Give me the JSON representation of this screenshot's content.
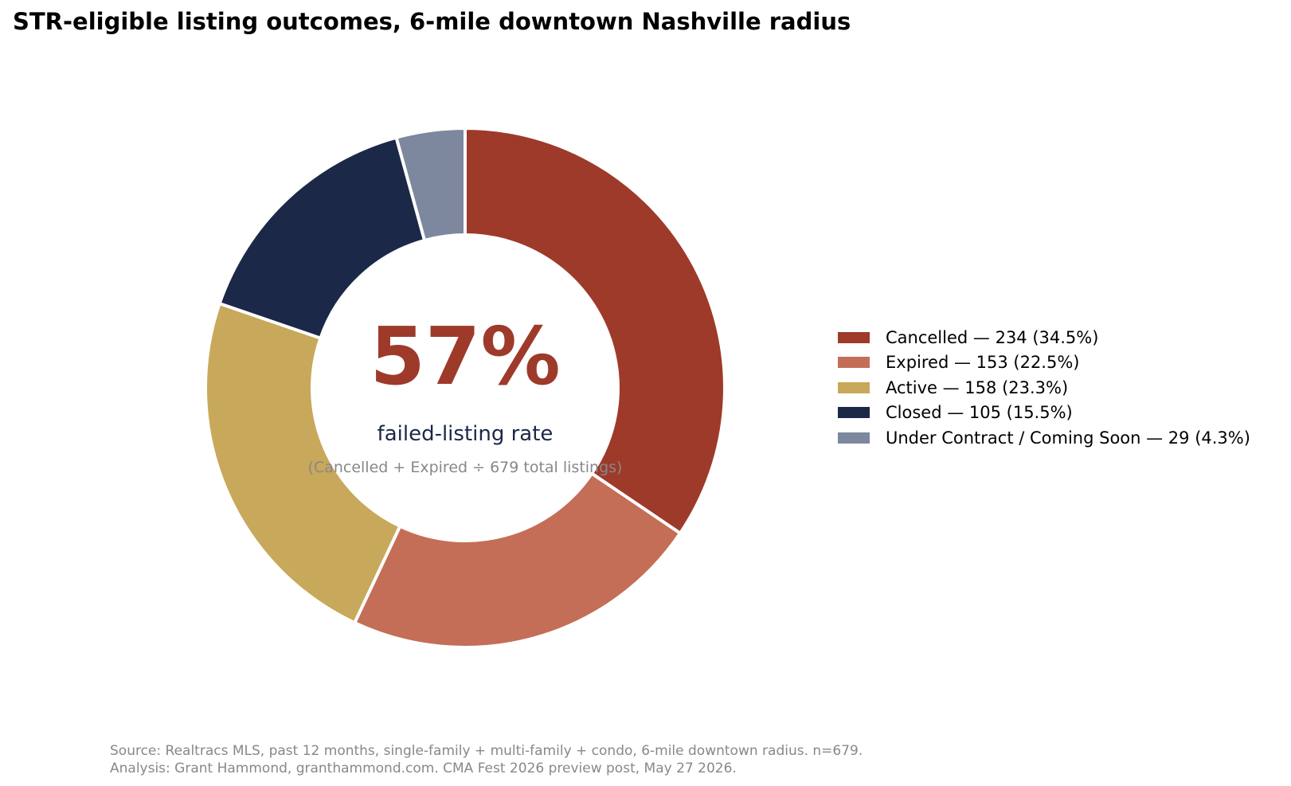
{
  "chart_data": {
    "type": "pie",
    "title": "STR-eligible listing outcomes, 6-mile downtown Nashville radius",
    "total": 679,
    "slices": [
      {
        "name": "Cancelled",
        "value": 234,
        "percent": 34.5,
        "color": "#9E3A2A",
        "label": "Cancelled — 234 (34.5%)"
      },
      {
        "name": "Expired",
        "value": 153,
        "percent": 22.5,
        "color": "#C46E57",
        "label": "Expired — 153 (22.5%)"
      },
      {
        "name": "Active",
        "value": 158,
        "percent": 23.3,
        "color": "#C8A85A",
        "label": "Active — 158 (23.3%)"
      },
      {
        "name": "Closed",
        "value": 105,
        "percent": 15.5,
        "color": "#1B2847",
        "label": "Closed — 105 (15.5%)"
      },
      {
        "name": "Under Contract / Coming Soon",
        "value": 29,
        "percent": 4.3,
        "color": "#7D889E",
        "label": "Under Contract / Coming Soon — 29 (4.3%)"
      }
    ],
    "center": {
      "headline": "57%",
      "headline_color": "#9E3A2A",
      "subtitle": "failed-listing rate",
      "subtitle_color": "#1B2847",
      "note": "(Cancelled + Expired ÷ 679 total listings)",
      "note_color": "#888888"
    },
    "legend_position": "right",
    "start_angle": "12 o'clock",
    "direction": "clockwise"
  },
  "footer": {
    "source_line1": "Source: Realtracs MLS, past 12 months, single-family + multi-family + condo, 6-mile downtown radius. n=679.",
    "source_line2": "Analysis: Grant Hammond, granthammond.com. CMA Fest 2026 preview post, May 27 2026."
  }
}
